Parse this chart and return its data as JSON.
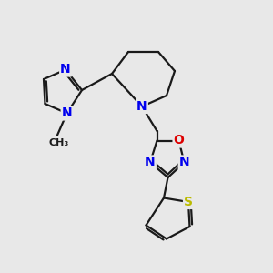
{
  "background_color": "#e8e8e8",
  "bond_color": "#1a1a1a",
  "atom_colors": {
    "N": "#0000ee",
    "O": "#dd0000",
    "S": "#bbbb00",
    "C": "#1a1a1a"
  },
  "font_size_atom": 10,
  "line_width": 1.6,
  "figsize": [
    3.0,
    3.0
  ],
  "dpi": 100
}
